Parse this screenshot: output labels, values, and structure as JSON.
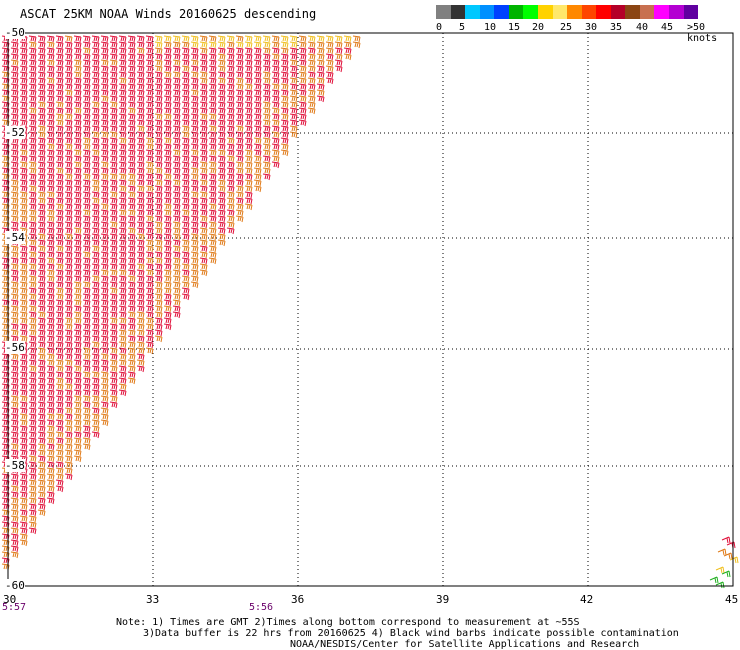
{
  "title": "ASCAT 25KM NOAA Winds 20160625 descending",
  "colorbar": {
    "colors": [
      "#808080",
      "#333333",
      "#00c8ff",
      "#0090ff",
      "#0040ff",
      "#00b400",
      "#00ff00",
      "#ffd200",
      "#ffe86a",
      "#ff8800",
      "#ff4400",
      "#ff0000",
      "#b40028",
      "#8b4513",
      "#c87050",
      "#ff00ff",
      "#b400d2",
      "#6000a0"
    ],
    "labels": [
      "0",
      "5",
      "10",
      "15",
      "20",
      "25",
      "30",
      "35",
      "40",
      "45",
      ">50 knots"
    ]
  },
  "map": {
    "lon_ticks": [
      "30",
      "33",
      "36",
      "39",
      "42",
      "45"
    ],
    "lat_ticks": [
      "-50",
      "-52",
      "-54",
      "-56",
      "-58",
      "-60"
    ],
    "time_labels": [
      "5:57",
      "5:56"
    ],
    "barb_colors": {
      "red": "#e0103a",
      "orange": "#e07a18",
      "yellow": "#f0c020",
      "green": "#20b020"
    }
  },
  "notes": [
    "Note: 1) Times are GMT 2)Times along bottom correspond to measurement at ~55S",
    "3)Data buffer is 22 hrs from 20160625 4) Black wind barbs indicate possible contamination",
    "NOAA/NESDIS/Center for Satellite Applications and Research"
  ]
}
